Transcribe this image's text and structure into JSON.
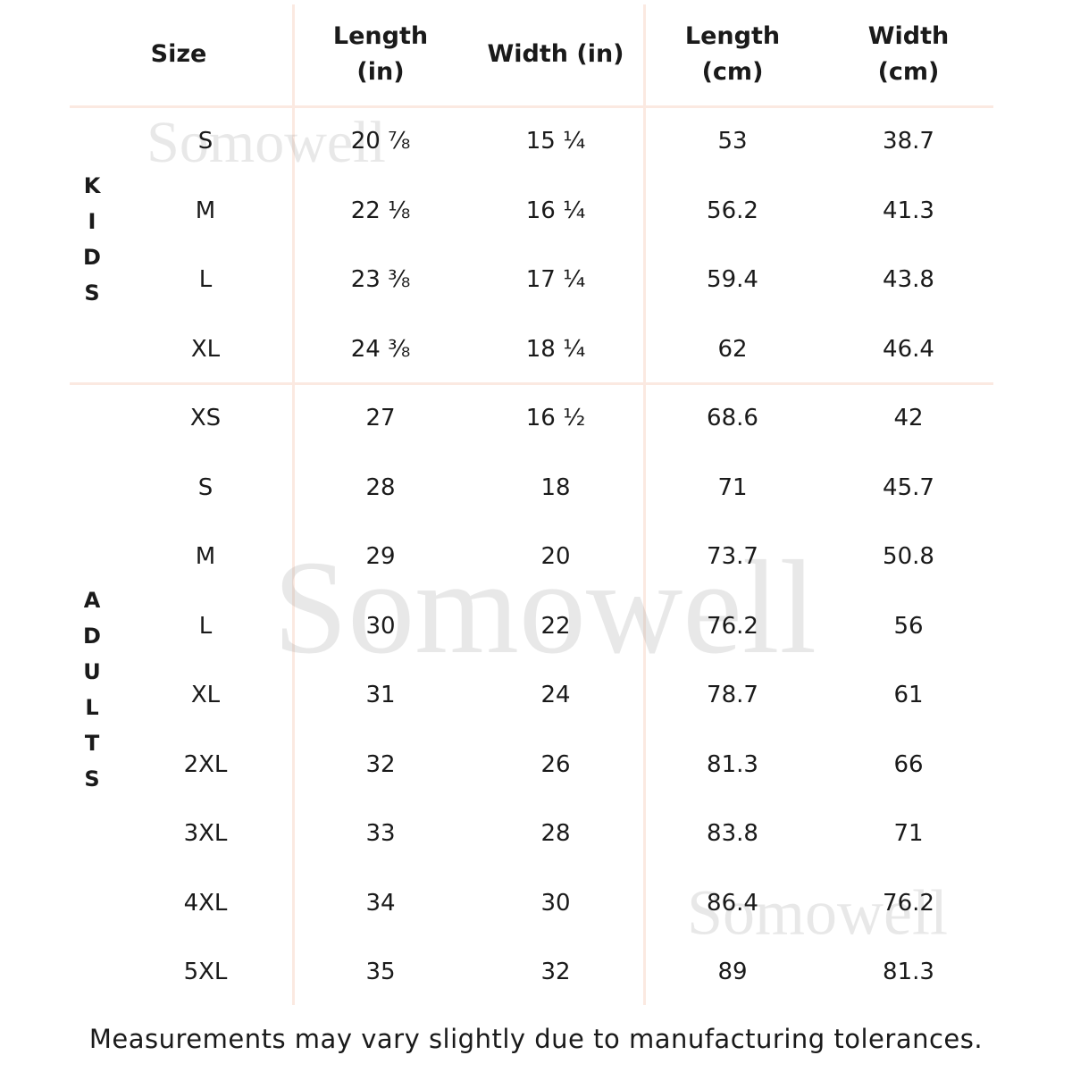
{
  "table": {
    "header": [
      [
        "Size"
      ],
      [
        "Length",
        "(in)"
      ],
      [
        "Width (in)"
      ],
      [
        "Length",
        "(cm)"
      ],
      [
        "Width",
        "(cm)"
      ]
    ],
    "groups": [
      {
        "label": "KIDS",
        "rows": [
          [
            "S",
            "20 ⅞",
            "15 ¼",
            "53",
            "38.7"
          ],
          [
            "M",
            "22 ⅛",
            "16 ¼",
            "56.2",
            "41.3"
          ],
          [
            "L",
            "23 ⅜",
            "17 ¼",
            "59.4",
            "43.8"
          ],
          [
            "XL",
            "24 ⅜",
            "18 ¼",
            "62",
            "46.4"
          ]
        ]
      },
      {
        "label": "ADULTS",
        "rows": [
          [
            "XS",
            "27",
            "16 ½",
            "68.6",
            "42"
          ],
          [
            "S",
            "28",
            "18",
            "71",
            "45.7"
          ],
          [
            "M",
            "29",
            "20",
            "73.7",
            "50.8"
          ],
          [
            "L",
            "30",
            "22",
            "76.2",
            "56"
          ],
          [
            "XL",
            "31",
            "24",
            "78.7",
            "61"
          ],
          [
            "2XL",
            "32",
            "26",
            "81.3",
            "66"
          ],
          [
            "3XL",
            "33",
            "28",
            "83.8",
            "71"
          ],
          [
            "4XL",
            "34",
            "30",
            "86.4",
            "76.2"
          ],
          [
            "5XL",
            "35",
            "32",
            "89",
            "81.3"
          ]
        ]
      }
    ]
  },
  "watermarks": [
    "Somowell",
    "Somowell",
    "Somowell"
  ],
  "footnote": "Measurements may vary slightly due to manufacturing tolerances."
}
